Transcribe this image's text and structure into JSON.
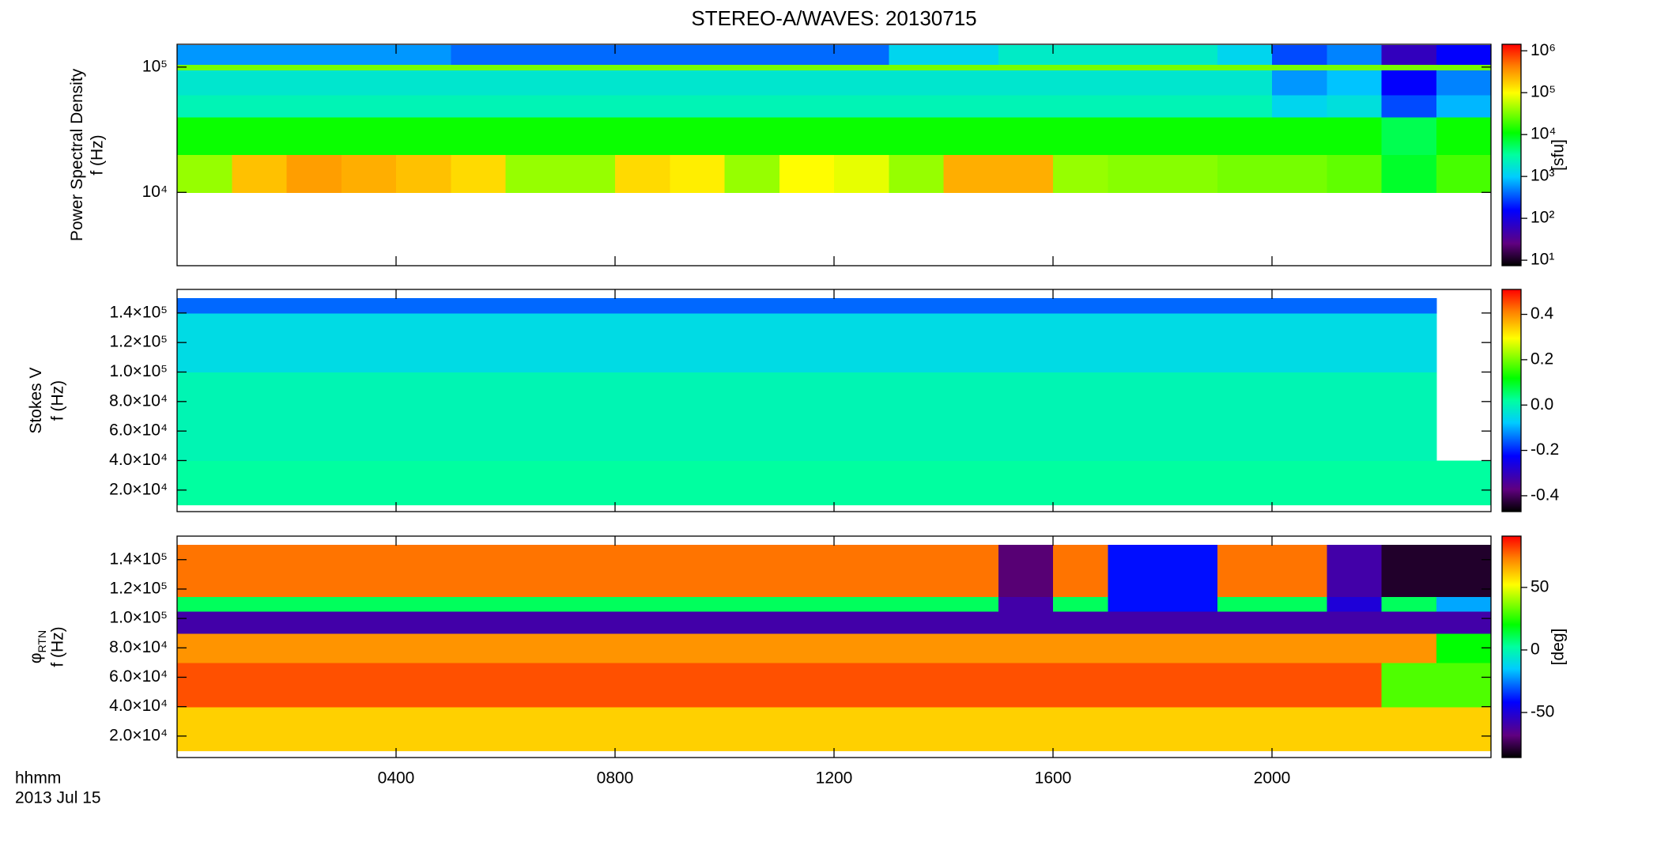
{
  "title": "STEREO-A/WAVES: 20130715",
  "x_caption": [
    "hhmm",
    "2013 Jul 15"
  ],
  "chart_data": [
    {
      "type": "heatmap",
      "ylabel": "Power Spectral Density",
      "ylabel_unit": "f (Hz)",
      "ylog": true,
      "ylim": [
        2600,
        152000
      ],
      "yticks": [
        {
          "value": 10000,
          "label": "10⁴"
        },
        {
          "value": 100000,
          "label": "10⁵"
        }
      ],
      "xlim": [
        0,
        24
      ],
      "xticks": [
        {
          "value": 4,
          "label": "0400"
        },
        {
          "value": 8,
          "label": "0800"
        },
        {
          "value": 12,
          "label": "1200"
        },
        {
          "value": 16,
          "label": "1600"
        },
        {
          "value": 20,
          "label": "2000"
        }
      ],
      "x_edges": [
        0,
        1,
        2,
        3,
        4,
        5,
        6,
        7,
        8,
        9,
        10,
        11,
        12,
        13,
        14,
        15,
        16,
        17,
        18,
        19,
        20,
        21,
        22,
        23,
        24
      ],
      "y_edges": [
        10000,
        20000,
        40000,
        60000,
        95000,
        105000,
        150000
      ],
      "values": [
        [
          40000,
          200000,
          300000,
          250000,
          200000,
          150000,
          40000,
          40000,
          150000,
          120000,
          40000,
          100000,
          80000,
          40000,
          250000,
          250000,
          40000,
          35000,
          35000,
          30000,
          30000,
          25000,
          8000,
          20000
        ],
        [
          12000,
          12000,
          12000,
          12000,
          12000,
          12000,
          12000,
          12000,
          12000,
          12000,
          12000,
          12000,
          12000,
          12000,
          12000,
          12000,
          12000,
          12000,
          12000,
          12000,
          12000,
          12000,
          6000,
          12000
        ],
        [
          2500,
          2500,
          2500,
          2500,
          2500,
          2500,
          2500,
          2500,
          2500,
          2500,
          2500,
          2500,
          2500,
          2500,
          2500,
          2500,
          2500,
          2500,
          2500,
          2500,
          1200,
          1500,
          300,
          800
        ],
        [
          1800,
          1800,
          1800,
          1800,
          1800,
          1800,
          1800,
          1800,
          1800,
          1800,
          1800,
          1800,
          1800,
          1800,
          1800,
          1800,
          1800,
          1800,
          1800,
          1800,
          600,
          900,
          150,
          500
        ],
        [
          30000,
          30000,
          30000,
          30000,
          30000,
          30000,
          30000,
          30000,
          30000,
          30000,
          30000,
          30000,
          30000,
          30000,
          30000,
          30000,
          30000,
          30000,
          30000,
          30000,
          30000,
          30000,
          30000,
          30000
        ],
        [
          600,
          600,
          600,
          600,
          600,
          400,
          400,
          400,
          400,
          400,
          400,
          400,
          400,
          1200,
          1200,
          2000,
          2000,
          2000,
          2000,
          1200,
          300,
          500,
          60,
          150
        ]
      ],
      "clog": true,
      "clim": [
        7.4,
        1430000
      ],
      "cticks": [
        {
          "value": 10,
          "label": "10¹"
        },
        {
          "value": 100,
          "label": "10²"
        },
        {
          "value": 1000,
          "label": "10³"
        },
        {
          "value": 10000,
          "label": "10⁴"
        },
        {
          "value": 100000,
          "label": "10⁵"
        },
        {
          "value": 1000000,
          "label": "10⁶"
        }
      ],
      "clabel": "[sfu]"
    },
    {
      "type": "heatmap",
      "ylabel": "Stokes V",
      "ylabel_unit": "f (Hz)",
      "ylog": false,
      "ylim": [
        5400,
        156000
      ],
      "yticks": [
        {
          "value": 20000,
          "label": "2.0×10⁴"
        },
        {
          "value": 40000,
          "label": "4.0×10⁴"
        },
        {
          "value": 60000,
          "label": "6.0×10⁴"
        },
        {
          "value": 80000,
          "label": "8.0×10⁴"
        },
        {
          "value": 100000,
          "label": "1.0×10⁵"
        },
        {
          "value": 120000,
          "label": "1.2×10⁵"
        },
        {
          "value": 140000,
          "label": "1.4×10⁵"
        }
      ],
      "xlim": [
        0,
        24
      ],
      "xticks": [
        {
          "value": 4,
          "label": "0400"
        },
        {
          "value": 8,
          "label": "0800"
        },
        {
          "value": 12,
          "label": "1200"
        },
        {
          "value": 16,
          "label": "1600"
        },
        {
          "value": 20,
          "label": "2000"
        }
      ],
      "x_edges": [
        0,
        1,
        2,
        3,
        4,
        5,
        6,
        7,
        8,
        9,
        10,
        11,
        12,
        13,
        14,
        15,
        16,
        17,
        18,
        19,
        20,
        21,
        22,
        23,
        24
      ],
      "y_edges": [
        10000,
        40000,
        100000,
        140000,
        150000
      ],
      "values": [
        [
          0.02,
          0.02,
          0.02,
          0.02,
          0.02,
          0.02,
          0.02,
          0.02,
          0.02,
          0.02,
          0.02,
          0.02,
          0.02,
          0.02,
          0.02,
          0.02,
          0.02,
          0.02,
          0.02,
          0.02,
          0.02,
          0.02,
          0.02,
          0.02
        ],
        [
          0,
          0,
          0,
          0,
          0,
          0,
          0,
          0,
          0,
          0,
          0,
          0,
          0,
          0,
          0,
          0,
          0,
          0,
          0,
          0,
          0,
          0,
          0,
          null
        ],
        [
          -0.05,
          -0.05,
          -0.05,
          -0.05,
          -0.05,
          -0.05,
          -0.05,
          -0.05,
          -0.05,
          -0.05,
          -0.05,
          -0.05,
          -0.05,
          -0.05,
          -0.05,
          -0.05,
          -0.05,
          -0.05,
          -0.05,
          -0.05,
          -0.05,
          -0.05,
          -0.05,
          null
        ],
        [
          -0.15,
          -0.15,
          -0.15,
          -0.15,
          -0.15,
          -0.15,
          -0.15,
          -0.15,
          -0.15,
          -0.15,
          -0.15,
          -0.15,
          -0.15,
          -0.15,
          -0.15,
          -0.15,
          -0.15,
          -0.15,
          -0.15,
          -0.15,
          -0.15,
          -0.15,
          -0.15,
          null
        ]
      ],
      "clog": false,
      "clim": [
        -0.47,
        0.51
      ],
      "cticks": [
        -0.4,
        -0.2,
        {
          "value": 0,
          "label": "0.0"
        },
        0.2,
        0.4
      ],
      "clabel": null
    },
    {
      "type": "heatmap",
      "ylabel": "φ",
      "ylabel_sub": "RTN",
      "ylabel_unit": "f (Hz)",
      "ylog": false,
      "ylim": [
        5400,
        156000
      ],
      "yticks": [
        {
          "value": 20000,
          "label": "2.0×10⁴"
        },
        {
          "value": 40000,
          "label": "4.0×10⁴"
        },
        {
          "value": 60000,
          "label": "6.0×10⁴"
        },
        {
          "value": 80000,
          "label": "8.0×10⁴"
        },
        {
          "value": 100000,
          "label": "1.0×10⁵"
        },
        {
          "value": 120000,
          "label": "1.2×10⁵"
        },
        {
          "value": 140000,
          "label": "1.4×10⁵"
        }
      ],
      "xlim": [
        0,
        24
      ],
      "xticks": [
        {
          "value": 4,
          "label": "0400"
        },
        {
          "value": 8,
          "label": "0800"
        },
        {
          "value": 12,
          "label": "1200"
        },
        {
          "value": 16,
          "label": "1600"
        },
        {
          "value": 20,
          "label": "2000"
        }
      ],
      "x_edges": [
        0,
        1,
        2,
        3,
        4,
        5,
        6,
        7,
        8,
        9,
        10,
        11,
        12,
        13,
        14,
        15,
        16,
        17,
        18,
        19,
        20,
        21,
        22,
        23,
        24
      ],
      "y_edges": [
        10000,
        40000,
        70000,
        90000,
        105000,
        115000,
        150000
      ],
      "values": [
        [
          60,
          60,
          60,
          60,
          60,
          60,
          60,
          60,
          60,
          60,
          60,
          60,
          60,
          60,
          60,
          60,
          60,
          60,
          60,
          60,
          60,
          60,
          60,
          60
        ],
        [
          80,
          80,
          80,
          80,
          80,
          80,
          80,
          80,
          80,
          80,
          80,
          80,
          80,
          80,
          80,
          80,
          80,
          80,
          80,
          80,
          80,
          80,
          30,
          30
        ],
        [
          70,
          70,
          70,
          70,
          70,
          70,
          70,
          70,
          70,
          70,
          70,
          70,
          70,
          70,
          70,
          70,
          70,
          70,
          70,
          70,
          70,
          70,
          70,
          20
        ],
        [
          -60,
          -60,
          -60,
          -60,
          -60,
          -60,
          -60,
          -60,
          -60,
          -60,
          -60,
          -60,
          -60,
          -60,
          -60,
          -60,
          -60,
          -60,
          -60,
          -60,
          -60,
          -60,
          -60,
          -60
        ],
        [
          10,
          10,
          10,
          10,
          10,
          10,
          10,
          10,
          10,
          10,
          10,
          10,
          10,
          10,
          10,
          -60,
          10,
          -40,
          -40,
          10,
          10,
          -50,
          10,
          -20
        ],
        [
          75,
          75,
          75,
          75,
          75,
          75,
          75,
          75,
          75,
          75,
          75,
          75,
          75,
          75,
          75,
          -70,
          75,
          -40,
          -40,
          75,
          75,
          -60,
          -80,
          -80
        ]
      ],
      "clog": false,
      "clim": [
        -86,
        91
      ],
      "cticks": [
        -50,
        0,
        50
      ],
      "clabel": "[deg]"
    }
  ]
}
